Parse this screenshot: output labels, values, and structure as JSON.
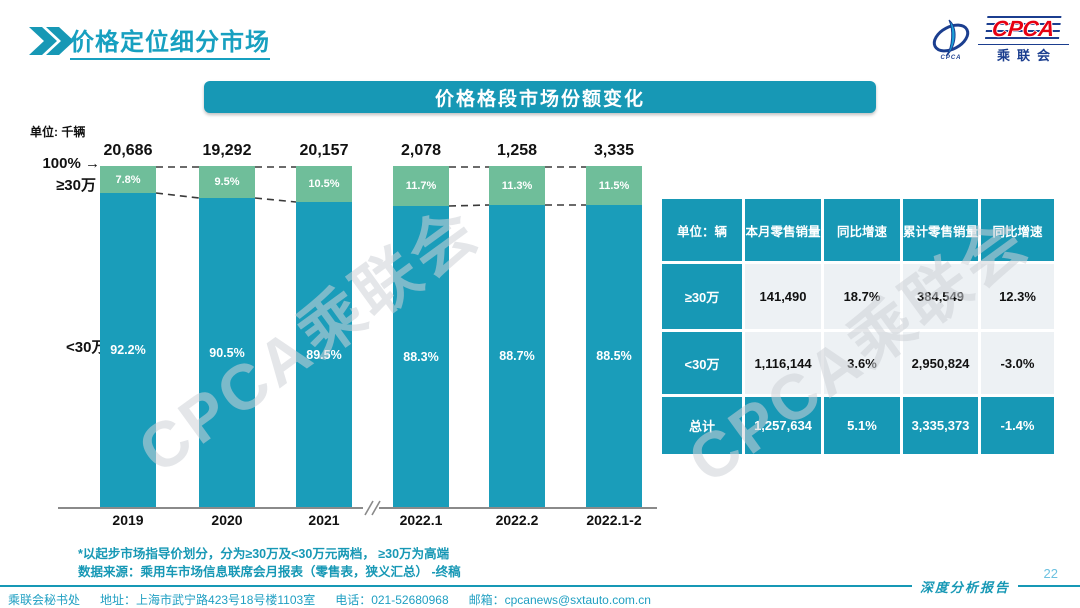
{
  "header": {
    "title": "价格定位细分市场"
  },
  "logo": {
    "acronym": "CPCA",
    "org_cn": "乘联会",
    "icon_caption": "CPCA"
  },
  "chart_data": {
    "type": "bar",
    "subtype": "stacked-100-percent",
    "title": "价格格段市场份额变化",
    "unit_label": "单位: 千辆",
    "axis_top_label": "100%",
    "axis_arrow": "→",
    "categories": [
      "2019",
      "2020",
      "2021",
      "2022.1",
      "2022.2",
      "2022.1-2"
    ],
    "totals": [
      "20,686",
      "19,292",
      "20,157",
      "2,078",
      "1,258",
      "3,335"
    ],
    "series": [
      {
        "name": "≥30万",
        "position": "top",
        "color": "#6FBE9A",
        "values": [
          7.8,
          9.5,
          10.5,
          11.7,
          11.3,
          11.5
        ]
      },
      {
        "name": "<30万",
        "position": "bottom",
        "color": "#1A9DBA",
        "values": [
          92.2,
          90.5,
          89.5,
          88.3,
          88.7,
          88.5
        ]
      }
    ],
    "ylim": [
      0,
      100
    ],
    "grid": false,
    "legend_position": "left-of-bars",
    "axis_break_after": "2021",
    "notes": [
      "*以起步市场指导价划分，分为≥30万及<30万元两档，  ≥30万为高端",
      "数据来源：乘用车市场信息联席会月报表（零售表，狭义汇总）  -终稿"
    ]
  },
  "table": {
    "corner_label": "单位：辆",
    "columns": [
      "本月零售销量",
      "同比增速",
      "累计零售销量",
      "同比增速"
    ],
    "rows": [
      {
        "label": "≥30万",
        "values": [
          "141,490",
          "18.7%",
          "384,549",
          "12.3%"
        ],
        "highlight": false
      },
      {
        "label": "<30万",
        "values": [
          "1,116,144",
          "3.6%",
          "2,950,824",
          "-3.0%"
        ],
        "highlight": false
      },
      {
        "label": "总计",
        "values": [
          "1,257,634",
          "5.1%",
          "3,335,373",
          "-1.4%"
        ],
        "highlight": true
      }
    ]
  },
  "watermark": {
    "text": "CPCA乘联会"
  },
  "footer": {
    "org": "乘联会秘书处",
    "address": "地址：上海市武宁路423号18号楼1103室",
    "phone": "电话：021-52680968",
    "email": "邮箱：cpcanews@sxtauto.com.cn",
    "report_label": "深度分析报告",
    "page_number": "22"
  },
  "colors": {
    "accent": "#1798B5",
    "green": "#6FBE9A",
    "table_cell_bg": "#EDF1F4",
    "logo_blue": "#1B3E8F",
    "logo_red": "#E60012"
  }
}
